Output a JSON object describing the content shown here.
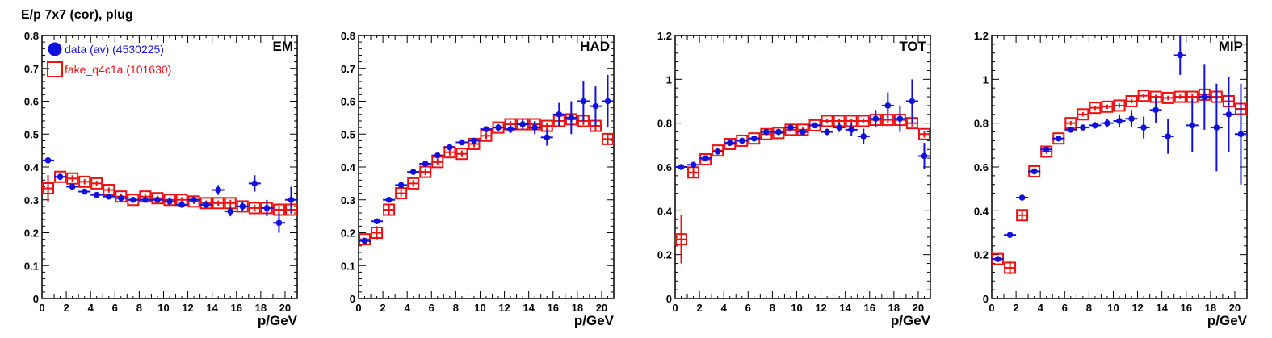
{
  "page": {
    "title": "E/p 7x7 (cor), plug"
  },
  "legend": {
    "data_label": "data (av) (4530225)",
    "mc_label": "fake_q4c1a (101630)",
    "placement": "top-left of first panel"
  },
  "colors": {
    "data": "#1111dd",
    "mc": "#ee1111",
    "axis": "#000000"
  },
  "chart_data": [
    {
      "type": "scatter",
      "panel_label": "EM",
      "xlabel": "p/GeV",
      "ylabel": "",
      "xlim": [
        0,
        21
      ],
      "ylim": [
        0,
        0.8
      ],
      "x_ticks": [
        0,
        2,
        4,
        6,
        8,
        10,
        12,
        14,
        16,
        18,
        20
      ],
      "y_ticks": [
        0,
        0.1,
        0.2,
        0.3,
        0.4,
        0.5,
        0.6,
        0.7,
        0.8
      ],
      "y_tick_labels": [
        "0",
        "0.1",
        "0.2",
        "0.3",
        "0.4",
        "0.5",
        "0.6",
        "0.7",
        "0.8"
      ],
      "grid": false,
      "series": [
        {
          "name": "data (av) (4530225)",
          "marker": "filled-circle",
          "x": [
            0.5,
            1.5,
            2.5,
            3.5,
            4.5,
            5.5,
            6.5,
            7.5,
            8.5,
            9.5,
            10.5,
            11.5,
            12.5,
            13.5,
            14.5,
            15.5,
            16.5,
            17.5,
            18.5,
            19.5,
            20.5
          ],
          "y": [
            0.42,
            0.37,
            0.34,
            0.325,
            0.315,
            0.31,
            0.305,
            0.3,
            0.3,
            0.3,
            0.295,
            0.285,
            0.3,
            0.285,
            0.33,
            0.265,
            0.28,
            0.35,
            0.275,
            0.23,
            0.3
          ],
          "err": [
            0.005,
            0.005,
            0.004,
            0.004,
            0.004,
            0.004,
            0.004,
            0.004,
            0.004,
            0.005,
            0.006,
            0.007,
            0.008,
            0.01,
            0.015,
            0.015,
            0.015,
            0.025,
            0.025,
            0.03,
            0.04
          ]
        },
        {
          "name": "fake_q4c1a (101630)",
          "marker": "open-square",
          "x": [
            0.5,
            1.5,
            2.5,
            3.5,
            4.5,
            5.5,
            6.5,
            7.5,
            8.5,
            9.5,
            10.5,
            11.5,
            12.5,
            13.5,
            14.5,
            15.5,
            16.5,
            17.5,
            18.5,
            19.5,
            20.5
          ],
          "y": [
            0.335,
            0.37,
            0.365,
            0.355,
            0.35,
            0.33,
            0.31,
            0.3,
            0.31,
            0.305,
            0.3,
            0.3,
            0.295,
            0.29,
            0.29,
            0.29,
            0.28,
            0.275,
            0.275,
            0.27,
            0.27
          ],
          "err": [
            0.04,
            0.01,
            0.01,
            0.008,
            0.008,
            0.008,
            0.008,
            0.008,
            0.008,
            0.008,
            0.008,
            0.008,
            0.008,
            0.008,
            0.008,
            0.01,
            0.01,
            0.01,
            0.01,
            0.012,
            0.012
          ]
        }
      ]
    },
    {
      "type": "scatter",
      "panel_label": "HAD",
      "xlabel": "p/GeV",
      "ylabel": "",
      "xlim": [
        0,
        21
      ],
      "ylim": [
        0,
        0.8
      ],
      "x_ticks": [
        0,
        2,
        4,
        6,
        8,
        10,
        12,
        14,
        16,
        18,
        20
      ],
      "y_ticks": [
        0,
        0.1,
        0.2,
        0.3,
        0.4,
        0.5,
        0.6,
        0.7,
        0.8
      ],
      "y_tick_labels": [
        "0",
        "0.1",
        "0.2",
        "0.3",
        "0.4",
        "0.5",
        "0.6",
        "0.7",
        "0.8"
      ],
      "grid": false,
      "series": [
        {
          "name": "data (av) (4530225)",
          "marker": "filled-circle",
          "x": [
            0.5,
            1.5,
            2.5,
            3.5,
            4.5,
            5.5,
            6.5,
            7.5,
            8.5,
            9.5,
            10.5,
            11.5,
            12.5,
            13.5,
            14.5,
            15.5,
            16.5,
            17.5,
            18.5,
            19.5,
            20.5
          ],
          "y": [
            0.175,
            0.235,
            0.3,
            0.345,
            0.385,
            0.41,
            0.435,
            0.46,
            0.475,
            0.48,
            0.515,
            0.52,
            0.515,
            0.53,
            0.52,
            0.49,
            0.56,
            0.55,
            0.6,
            0.585,
            0.6
          ],
          "err": [
            0.004,
            0.004,
            0.004,
            0.004,
            0.004,
            0.004,
            0.004,
            0.004,
            0.005,
            0.006,
            0.008,
            0.01,
            0.012,
            0.015,
            0.02,
            0.025,
            0.035,
            0.05,
            0.06,
            0.06,
            0.08
          ]
        },
        {
          "name": "fake_q4c1a (101630)",
          "marker": "open-square",
          "x": [
            0.5,
            1.5,
            2.5,
            3.5,
            4.5,
            5.5,
            6.5,
            7.5,
            8.5,
            9.5,
            10.5,
            11.5,
            12.5,
            13.5,
            14.5,
            15.5,
            16.5,
            17.5,
            18.5,
            19.5,
            20.5
          ],
          "y": [
            0.18,
            0.2,
            0.27,
            0.32,
            0.35,
            0.385,
            0.415,
            0.445,
            0.44,
            0.47,
            0.495,
            0.52,
            0.53,
            0.53,
            0.53,
            0.525,
            0.54,
            0.545,
            0.54,
            0.525,
            0.485
          ],
          "err": [
            0.005,
            0.02,
            0.015,
            0.01,
            0.01,
            0.01,
            0.01,
            0.01,
            0.01,
            0.01,
            0.01,
            0.01,
            0.01,
            0.01,
            0.01,
            0.01,
            0.012,
            0.012,
            0.012,
            0.015,
            0.015
          ]
        }
      ]
    },
    {
      "type": "scatter",
      "panel_label": "TOT",
      "xlabel": "p/GeV",
      "ylabel": "",
      "xlim": [
        0,
        21
      ],
      "ylim": [
        0,
        1.2
      ],
      "x_ticks": [
        0,
        2,
        4,
        6,
        8,
        10,
        12,
        14,
        16,
        18,
        20
      ],
      "y_ticks": [
        0,
        0.2,
        0.4,
        0.6,
        0.8,
        1.0,
        1.2
      ],
      "y_tick_labels": [
        "0",
        "0.2",
        "0.4",
        "0.6",
        "0.8",
        "1",
        "1.2"
      ],
      "grid": false,
      "series": [
        {
          "name": "data (av) (4530225)",
          "marker": "filled-circle",
          "x": [
            0.5,
            1.5,
            2.5,
            3.5,
            4.5,
            5.5,
            6.5,
            7.5,
            8.5,
            9.5,
            10.5,
            11.5,
            12.5,
            13.5,
            14.5,
            15.5,
            16.5,
            17.5,
            18.5,
            19.5,
            20.5
          ],
          "y": [
            0.6,
            0.61,
            0.64,
            0.67,
            0.71,
            0.72,
            0.73,
            0.76,
            0.76,
            0.78,
            0.76,
            0.79,
            0.76,
            0.78,
            0.77,
            0.74,
            0.82,
            0.88,
            0.82,
            0.9,
            0.65
          ],
          "err": [
            0.005,
            0.005,
            0.005,
            0.005,
            0.005,
            0.005,
            0.005,
            0.005,
            0.006,
            0.008,
            0.01,
            0.012,
            0.015,
            0.02,
            0.03,
            0.035,
            0.04,
            0.06,
            0.06,
            0.1,
            0.06
          ]
        },
        {
          "name": "fake_q4c1a (101630)",
          "marker": "open-square",
          "x": [
            0.5,
            1.5,
            2.5,
            3.5,
            4.5,
            5.5,
            6.5,
            7.5,
            8.5,
            9.5,
            10.5,
            11.5,
            12.5,
            13.5,
            14.5,
            15.5,
            16.5,
            17.5,
            18.5,
            19.5,
            20.5
          ],
          "y": [
            0.27,
            0.575,
            0.635,
            0.675,
            0.705,
            0.72,
            0.73,
            0.75,
            0.755,
            0.77,
            0.77,
            0.79,
            0.81,
            0.81,
            0.81,
            0.81,
            0.815,
            0.815,
            0.815,
            0.8,
            0.75
          ],
          "err": [
            0.11,
            0.02,
            0.01,
            0.01,
            0.01,
            0.01,
            0.01,
            0.01,
            0.01,
            0.01,
            0.01,
            0.01,
            0.01,
            0.01,
            0.01,
            0.01,
            0.012,
            0.012,
            0.012,
            0.015,
            0.015
          ]
        }
      ]
    },
    {
      "type": "scatter",
      "panel_label": "MIP",
      "xlabel": "p/GeV",
      "ylabel": "",
      "xlim": [
        0,
        21
      ],
      "ylim": [
        0,
        1.2
      ],
      "x_ticks": [
        0,
        2,
        4,
        6,
        8,
        10,
        12,
        14,
        16,
        18,
        20
      ],
      "y_ticks": [
        0,
        0.2,
        0.4,
        0.6,
        0.8,
        1.0,
        1.2
      ],
      "y_tick_labels": [
        "0",
        "0.2",
        "0.4",
        "0.6",
        "0.8",
        "1",
        "1.2"
      ],
      "grid": false,
      "series": [
        {
          "name": "data (av) (4530225)",
          "marker": "filled-circle",
          "x": [
            0.5,
            1.5,
            2.5,
            3.5,
            4.5,
            5.5,
            6.5,
            7.5,
            8.5,
            9.5,
            10.5,
            11.5,
            12.5,
            13.5,
            14.5,
            15.5,
            16.5,
            17.5,
            18.5,
            19.5,
            20.5
          ],
          "y": [
            0.18,
            0.29,
            0.46,
            0.58,
            0.68,
            0.73,
            0.77,
            0.78,
            0.79,
            0.8,
            0.81,
            0.82,
            0.78,
            0.86,
            0.74,
            1.11,
            0.79,
            0.92,
            0.78,
            0.84,
            0.75
          ],
          "err": [
            0.005,
            0.005,
            0.005,
            0.005,
            0.005,
            0.005,
            0.01,
            0.01,
            0.015,
            0.02,
            0.03,
            0.04,
            0.05,
            0.06,
            0.08,
            0.09,
            0.12,
            0.15,
            0.2,
            0.17,
            0.23
          ]
        },
        {
          "name": "fake_q4c1a (101630)",
          "marker": "open-square",
          "x": [
            0.5,
            1.5,
            2.5,
            3.5,
            4.5,
            5.5,
            6.5,
            7.5,
            8.5,
            9.5,
            10.5,
            11.5,
            12.5,
            13.5,
            14.5,
            15.5,
            16.5,
            17.5,
            18.5,
            19.5,
            20.5
          ],
          "y": [
            0.18,
            0.14,
            0.38,
            0.58,
            0.67,
            0.73,
            0.8,
            0.84,
            0.87,
            0.875,
            0.88,
            0.9,
            0.925,
            0.92,
            0.915,
            0.92,
            0.92,
            0.93,
            0.92,
            0.9,
            0.865
          ],
          "err": [
            0.005,
            0.03,
            0.02,
            0.012,
            0.01,
            0.01,
            0.01,
            0.01,
            0.01,
            0.01,
            0.01,
            0.01,
            0.01,
            0.01,
            0.01,
            0.01,
            0.012,
            0.012,
            0.012,
            0.015,
            0.015
          ]
        }
      ]
    }
  ]
}
